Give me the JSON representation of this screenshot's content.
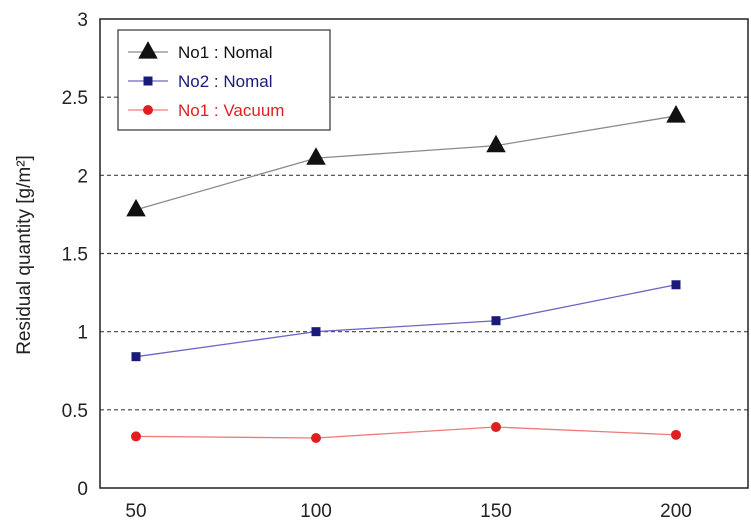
{
  "chart_data": {
    "type": "line",
    "x": [
      50,
      100,
      150,
      200
    ],
    "ylabel": "Residual quantity [g/m²]",
    "xlabel": "",
    "ylim": [
      0,
      3
    ],
    "yticks": [
      "0",
      "0.5",
      "1",
      "1.5",
      "2",
      "2.5",
      "3"
    ],
    "xticks": [
      "50",
      "100",
      "150",
      "200"
    ],
    "grid": "horizontal dashed",
    "legend_position": "top-left",
    "series": [
      {
        "name": "No1 : Nomal",
        "marker": "triangle",
        "color": "#111111",
        "line_color": "#8a8a8a",
        "values": [
          1.78,
          2.11,
          2.19,
          2.38
        ]
      },
      {
        "name": "No2 : Nomal",
        "marker": "square",
        "color": "#1a1a7a",
        "line_color": "#6a66c4",
        "values": [
          0.84,
          1.0,
          1.07,
          1.3
        ]
      },
      {
        "name": "No1 : Vacuum",
        "marker": "circle",
        "color": "#e02020",
        "line_color": "#f07a7a",
        "values": [
          0.33,
          0.32,
          0.39,
          0.34
        ]
      }
    ]
  }
}
